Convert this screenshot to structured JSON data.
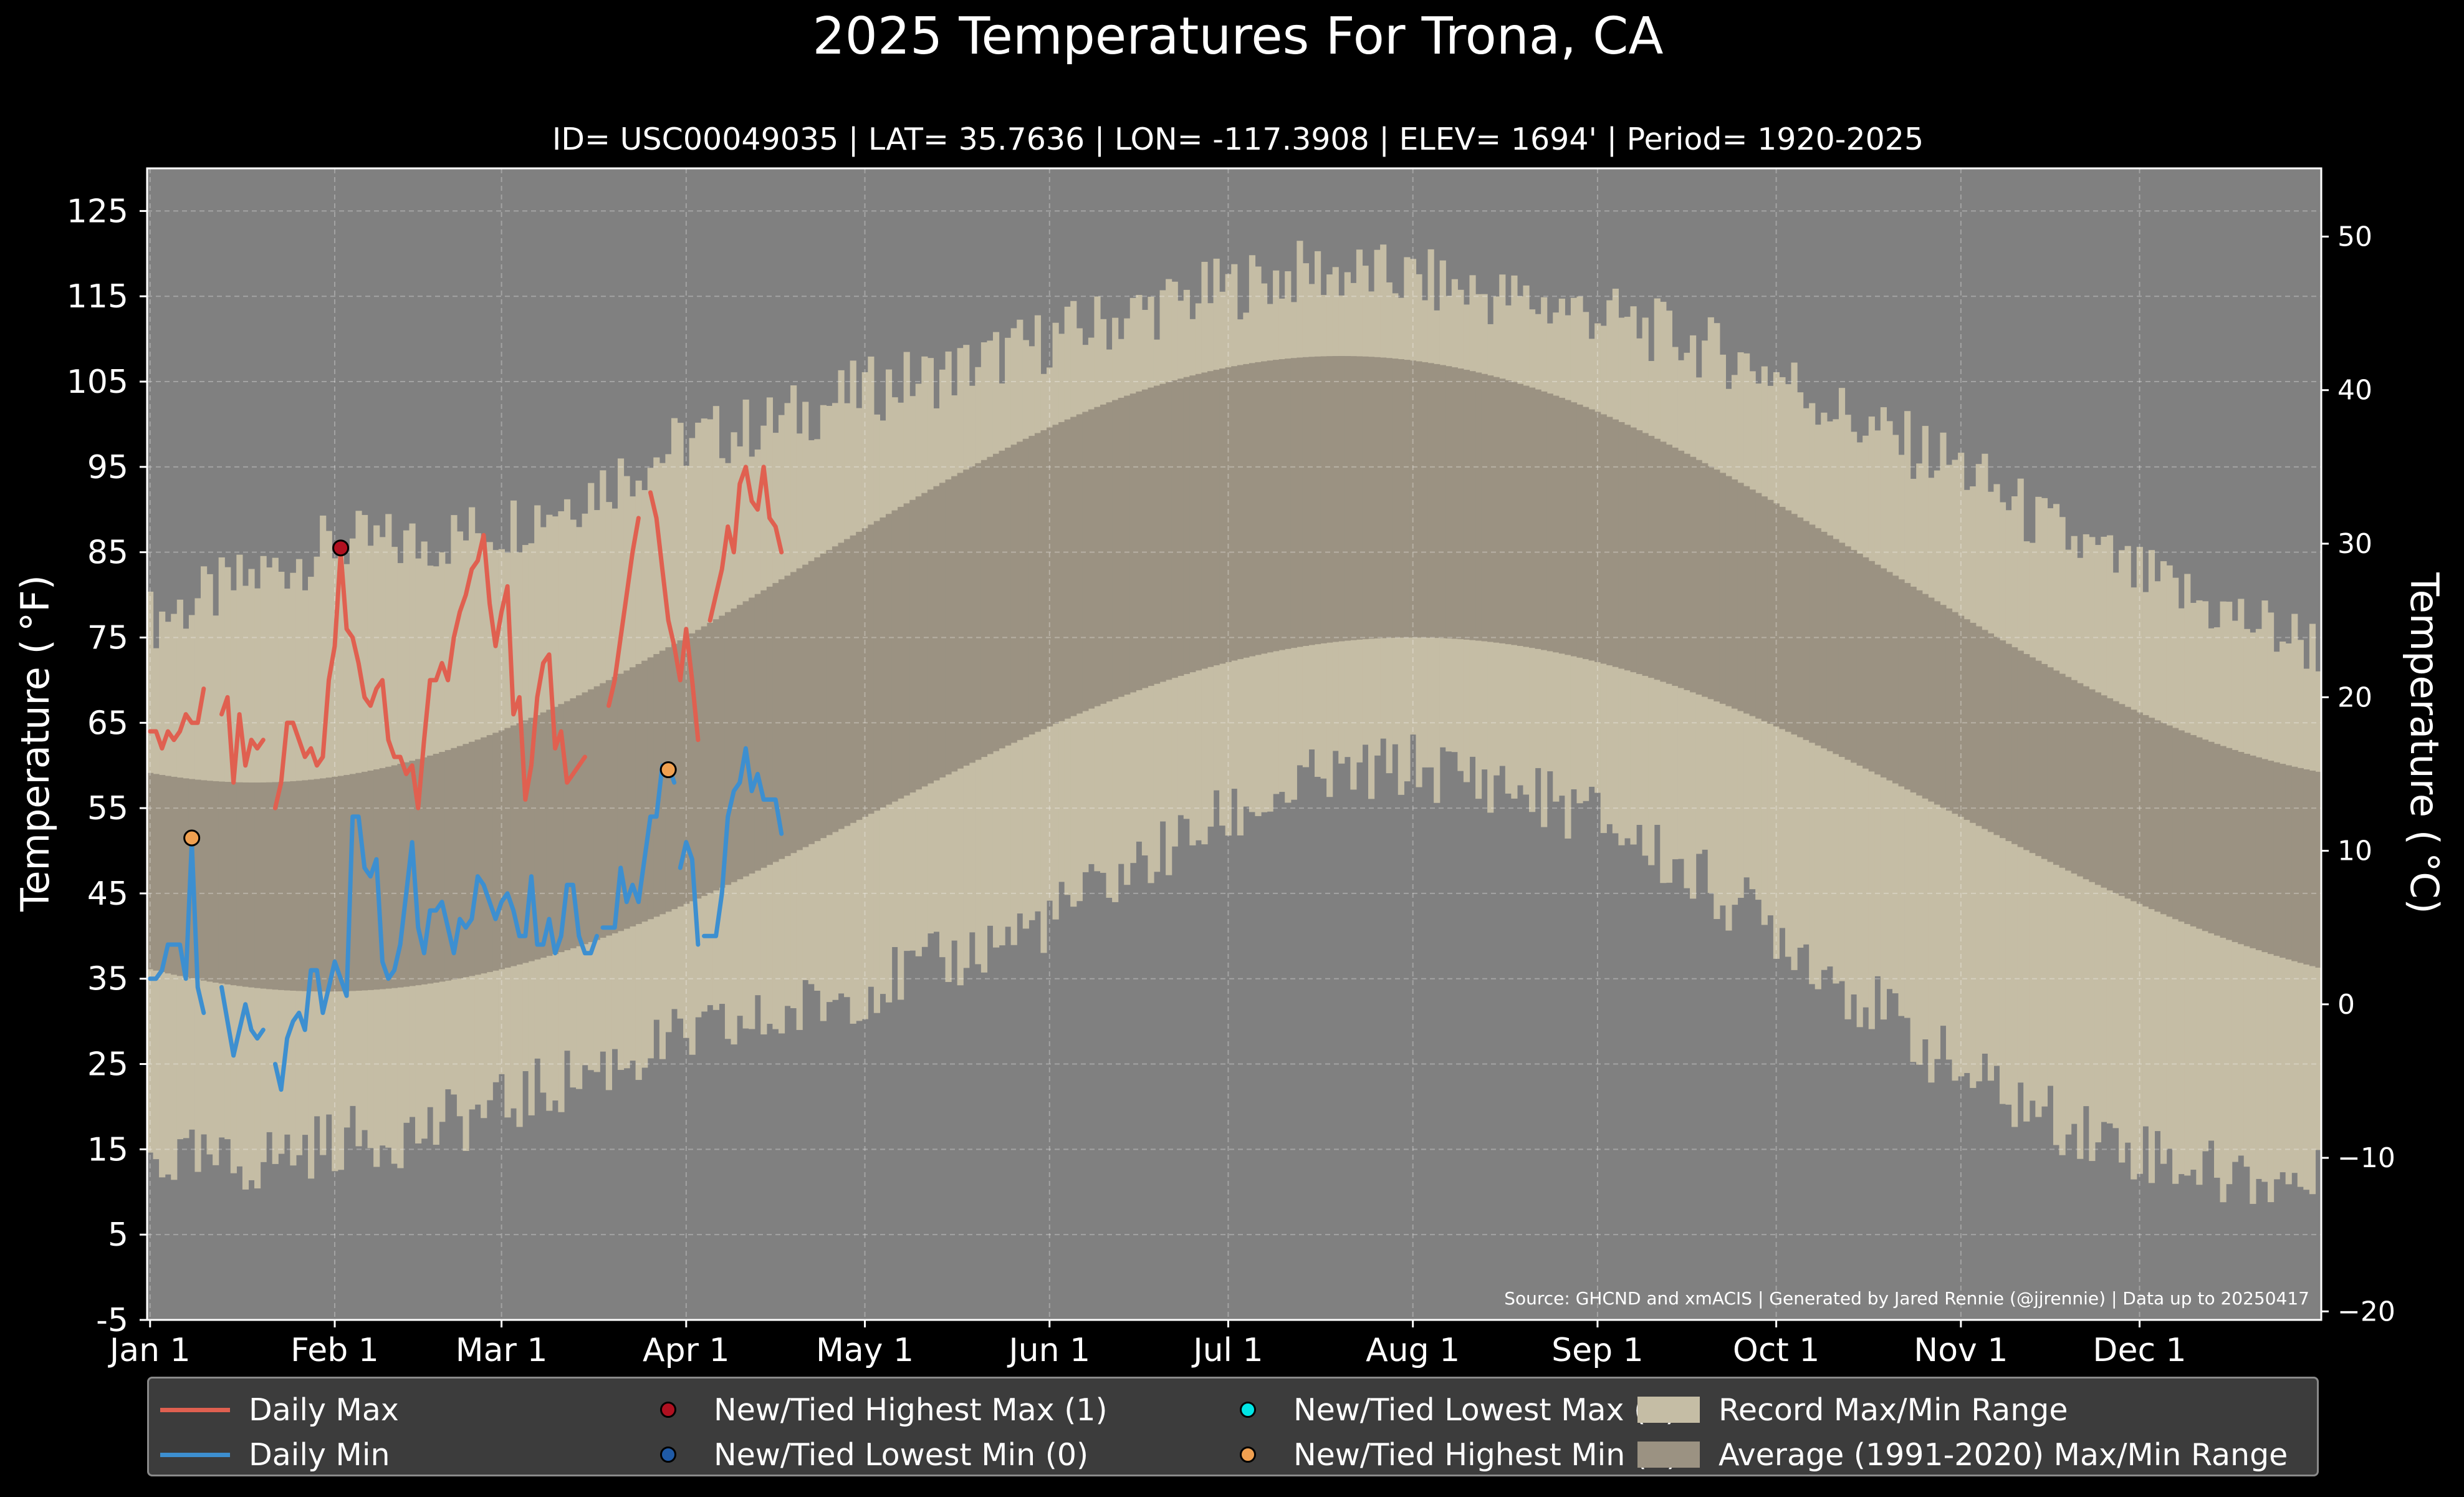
{
  "chart_data": {
    "type": "line",
    "title": "2025 Temperatures For Trona, CA",
    "subtitle": "ID= USC00049035 | LAT= 35.7636 | LON= -117.3908 | ELEV= 1694' | Period= 1920-2025",
    "ylabel_left": "Temperature ( $^\\circ$F)",
    "ylabel_left_display": "Temperature ( °F)",
    "ylabel_right_display": "Temperature ( °C)",
    "source": "Source: GHCND and xmACIS | Generated by Jared Rennie (@jjrennie) | Data up to 20250417",
    "ylim_f": [
      -5,
      130
    ],
    "yticks_f": [
      "125",
      "115",
      "105",
      "95",
      "85",
      "75",
      "65",
      "55",
      "45",
      "35",
      "25",
      "15",
      "5",
      "-5"
    ],
    "yticks_c": [
      "50",
      "40",
      "30",
      "20",
      "10",
      "0",
      "−10",
      "−20"
    ],
    "xticks": [
      "Jan 1",
      "Feb 1",
      "Mar 1",
      "Apr 1",
      "May 1",
      "Jun 1",
      "Jul 1",
      "Aug 1",
      "Sep 1",
      "Oct 1",
      "Nov 1",
      "Dec 1"
    ],
    "xtick_days": [
      1,
      32,
      60,
      91,
      121,
      152,
      182,
      213,
      244,
      274,
      305,
      335
    ],
    "grid": true,
    "colors": {
      "background": "#000000",
      "plot_bg": "#808080",
      "record_range": "#c5bda5",
      "normal_range": "#9b9282",
      "daily_max": "#e06050",
      "daily_min": "#3d8fd0",
      "new_high_max": "#b01020",
      "new_low_min": "#1f5aa6",
      "new_low_max": "#00e5e5",
      "new_high_min": "#f0a050"
    },
    "record_max_anchors": [
      [
        1,
        77
      ],
      [
        15,
        81
      ],
      [
        32,
        86
      ],
      [
        46,
        86
      ],
      [
        60,
        88
      ],
      [
        74,
        92
      ],
      [
        91,
        98
      ],
      [
        105,
        100
      ],
      [
        121,
        104
      ],
      [
        135,
        106
      ],
      [
        152,
        110
      ],
      [
        166,
        113
      ],
      [
        182,
        116
      ],
      [
        196,
        118
      ],
      [
        213,
        117
      ],
      [
        227,
        115
      ],
      [
        244,
        113
      ],
      [
        258,
        110
      ],
      [
        274,
        106
      ],
      [
        288,
        100
      ],
      [
        305,
        95
      ],
      [
        319,
        88
      ],
      [
        335,
        82
      ],
      [
        349,
        78
      ],
      [
        365,
        74
      ]
    ],
    "record_min_anchors": [
      [
        1,
        14
      ],
      [
        15,
        13
      ],
      [
        32,
        16
      ],
      [
        46,
        17
      ],
      [
        60,
        20
      ],
      [
        74,
        24
      ],
      [
        91,
        28
      ],
      [
        105,
        30
      ],
      [
        121,
        34
      ],
      [
        135,
        37
      ],
      [
        152,
        42
      ],
      [
        166,
        48
      ],
      [
        182,
        54
      ],
      [
        196,
        58
      ],
      [
        213,
        60
      ],
      [
        227,
        58
      ],
      [
        244,
        54
      ],
      [
        258,
        48
      ],
      [
        274,
        41
      ],
      [
        288,
        33
      ],
      [
        305,
        24
      ],
      [
        319,
        19
      ],
      [
        335,
        15
      ],
      [
        349,
        12
      ],
      [
        365,
        11
      ]
    ],
    "normal_max": {
      "min": 58,
      "max": 108,
      "peak_day": 201
    },
    "normal_min": {
      "min": 33.5,
      "max": 75,
      "peak_day": 213
    },
    "daily_max_segments": [
      {
        "start_day": 1,
        "values": [
          64,
          64,
          62,
          64,
          63,
          64,
          66,
          65,
          65,
          69
        ]
      },
      {
        "start_day": 13,
        "values": [
          66,
          68,
          58,
          66,
          60,
          63,
          62,
          63
        ]
      },
      {
        "start_day": 22,
        "values": [
          55,
          58,
          65,
          65,
          63,
          61,
          62,
          60,
          61,
          70,
          74,
          85,
          76,
          75,
          72,
          68,
          67,
          69,
          70,
          63,
          61,
          61,
          59,
          60,
          55,
          63,
          70,
          70,
          72,
          70,
          75,
          78,
          80,
          83,
          84,
          87,
          79,
          74,
          78,
          81,
          66,
          68,
          56,
          60,
          68,
          72,
          73,
          62,
          64,
          58,
          59,
          60,
          61
        ]
      },
      {
        "start_day": 78,
        "values": [
          67,
          70,
          75,
          80,
          85,
          89
        ]
      },
      {
        "start_day": 85,
        "values": [
          92,
          89,
          83,
          77,
          74,
          70,
          76,
          70,
          63
        ]
      },
      {
        "start_day": 95,
        "values": [
          77,
          80,
          83,
          88,
          85,
          93,
          95,
          91,
          90,
          95,
          89,
          88,
          85
        ]
      }
    ],
    "daily_min_segments": [
      {
        "start_day": 1,
        "values": [
          35,
          35,
          36,
          39,
          39,
          39,
          35,
          51,
          34,
          31
        ]
      },
      {
        "start_day": 13,
        "values": [
          34,
          30,
          26,
          29,
          32,
          29,
          28,
          29
        ]
      },
      {
        "start_day": 22,
        "values": [
          25,
          22,
          28,
          30,
          31,
          29,
          36,
          36,
          31,
          34,
          37,
          35,
          33,
          54,
          54,
          48,
          47,
          49,
          37,
          35,
          36,
          39,
          45,
          51,
          41,
          38,
          43,
          43,
          44,
          41,
          38,
          42,
          41,
          42,
          47,
          46,
          44,
          42,
          44,
          45,
          43,
          40,
          40,
          47,
          39,
          39,
          42,
          38,
          40,
          46,
          46,
          40,
          38,
          38,
          40
        ]
      },
      {
        "start_day": 77,
        "values": [
          41,
          41,
          41,
          48,
          44,
          46,
          44,
          49,
          54,
          54,
          60,
          60,
          58
        ]
      },
      {
        "start_day": 90,
        "values": [
          48,
          51,
          49,
          39
        ]
      },
      {
        "start_day": 94,
        "values": [
          40,
          40,
          40,
          45,
          54,
          57,
          58,
          62,
          57,
          59,
          56,
          56,
          56,
          52
        ]
      }
    ],
    "record_points": [
      {
        "series": "new_high_max",
        "day": 33,
        "value": 85.5
      },
      {
        "series": "new_high_min",
        "day": 8,
        "value": 51.5
      },
      {
        "series": "new_high_min",
        "day": 88,
        "value": 59.5
      }
    ]
  },
  "legend": {
    "daily_max": "Daily Max",
    "daily_min": "Daily Min",
    "new_high_max": "New/Tied Highest Max (1)",
    "new_low_min": "New/Tied Lowest Min (0)",
    "new_low_max": "New/Tied Lowest Max (0)",
    "new_high_min": "New/Tied Highest Min (2)",
    "record_range": "Record Max/Min Range",
    "normal_range": "Average (1991-2020) Max/Min Range"
  }
}
